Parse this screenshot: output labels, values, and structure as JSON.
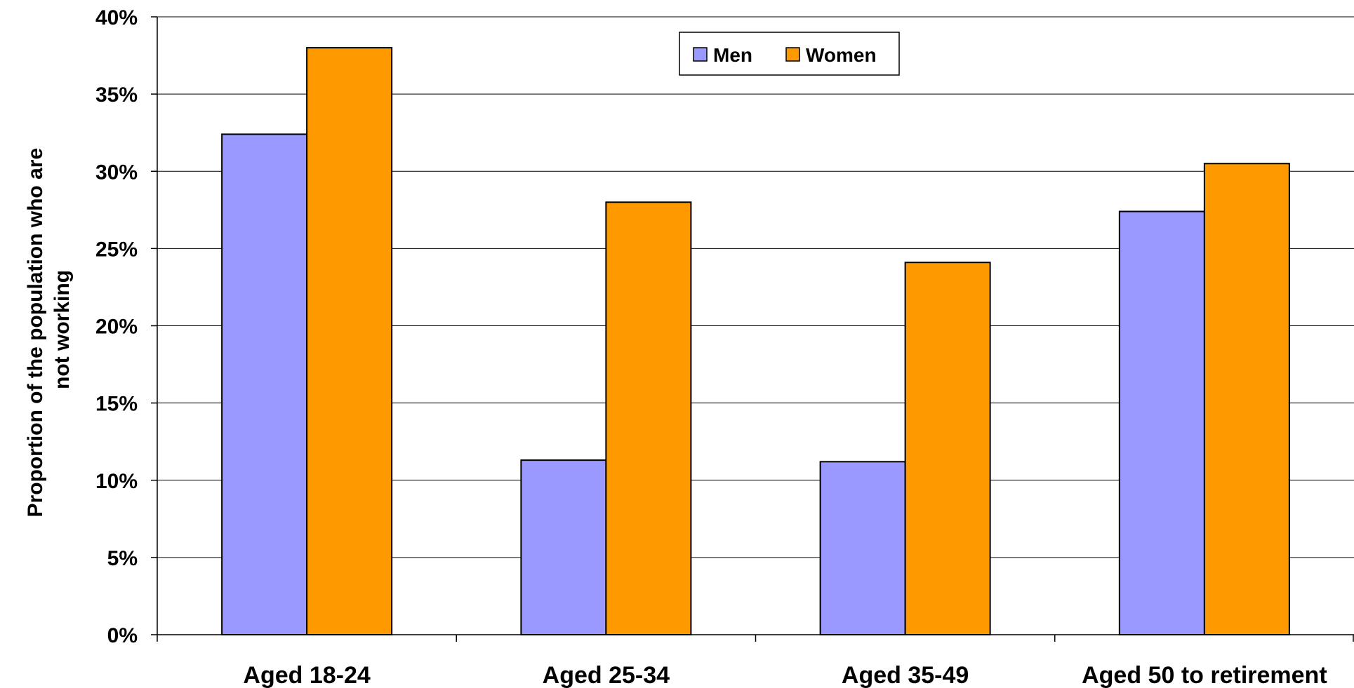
{
  "chart_data": {
    "type": "bar",
    "title": "",
    "xlabel": "",
    "ylabel": "Proportion of the population who are not working",
    "ylabel_lines": [
      "Proportion of the population who are",
      "not working"
    ],
    "categories": [
      "Aged 18-24",
      "Aged 25-34",
      "Aged 35-49",
      "Aged 50 to retirement"
    ],
    "series": [
      {
        "name": "Men",
        "color": "#9999ff",
        "values": [
          32.4,
          11.3,
          11.2,
          27.4
        ]
      },
      {
        "name": "Women",
        "color": "#ff9900",
        "values": [
          38.0,
          28.0,
          24.1,
          30.5
        ]
      }
    ],
    "ylim": [
      0,
      40
    ],
    "yticks": [
      0,
      5,
      10,
      15,
      20,
      25,
      30,
      35,
      40
    ],
    "ytick_labels": [
      "0%",
      "5%",
      "10%",
      "15%",
      "20%",
      "25%",
      "30%",
      "35%",
      "40%"
    ],
    "grid": true,
    "legend_position": "top-center"
  }
}
